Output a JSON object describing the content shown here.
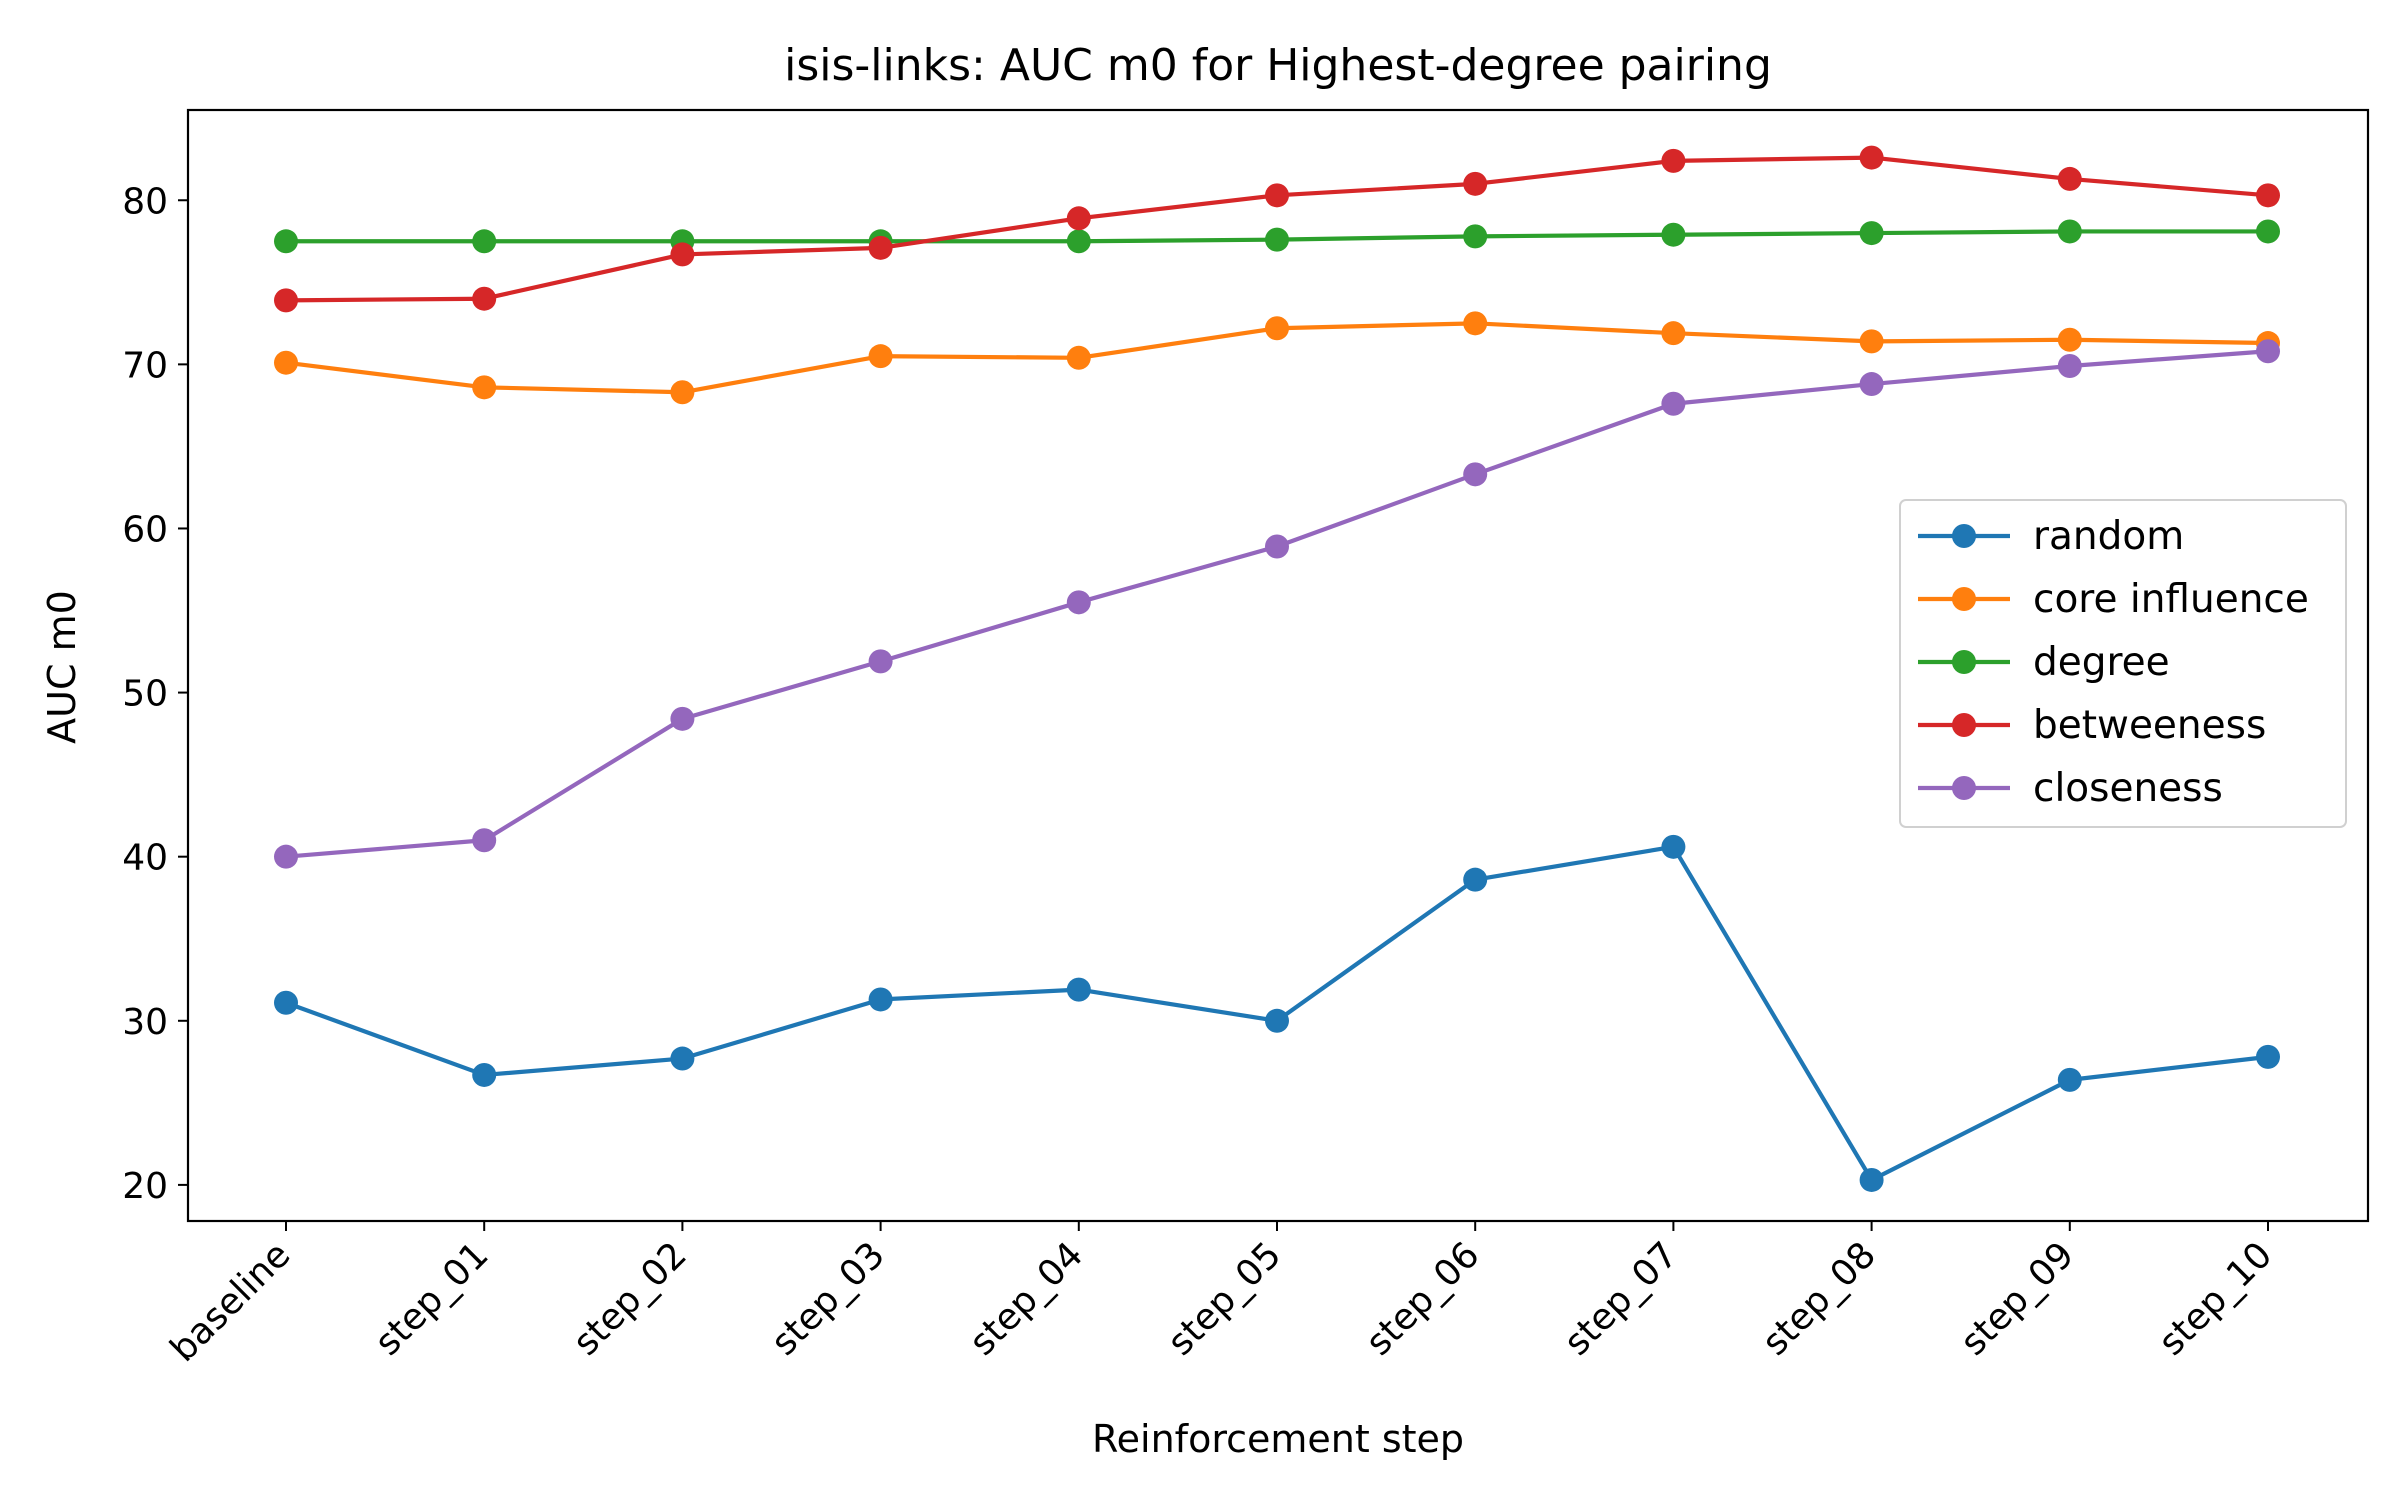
{
  "chart_data": {
    "type": "line",
    "title": "isis-links: AUC m0 for Highest-degree pairing",
    "xlabel": "Reinforcement step",
    "ylabel": "AUC m0",
    "categories": [
      "baseline",
      "step_01",
      "step_02",
      "step_03",
      "step_04",
      "step_05",
      "step_06",
      "step_07",
      "step_08",
      "step_09",
      "step_10"
    ],
    "ylim": [
      17.8,
      85.5
    ],
    "yticks": [
      20,
      30,
      40,
      50,
      60,
      70,
      80
    ],
    "grid": false,
    "legend_position": "center-right",
    "series": [
      {
        "name": "random",
        "color": "#1f77b4",
        "values": [
          31.1,
          26.7,
          27.7,
          31.3,
          31.9,
          30.0,
          38.6,
          40.6,
          20.3,
          26.4,
          27.8
        ]
      },
      {
        "name": "core influence",
        "color": "#ff7f0e",
        "values": [
          70.1,
          68.6,
          68.3,
          70.5,
          70.4,
          72.2,
          72.5,
          71.9,
          71.4,
          71.5,
          71.3
        ]
      },
      {
        "name": "degree",
        "color": "#2ca02c",
        "values": [
          77.5,
          77.5,
          77.5,
          77.5,
          77.5,
          77.6,
          77.8,
          77.9,
          78.0,
          78.1,
          78.1
        ]
      },
      {
        "name": "betweeness",
        "color": "#d62728",
        "values": [
          73.9,
          74.0,
          76.7,
          77.1,
          78.9,
          80.3,
          81.0,
          82.4,
          82.6,
          81.3,
          80.3
        ]
      },
      {
        "name": "closeness",
        "color": "#9467bd",
        "values": [
          40.0,
          41.0,
          48.4,
          51.9,
          55.5,
          58.9,
          63.3,
          67.6,
          68.8,
          69.9,
          70.8
        ]
      }
    ]
  }
}
